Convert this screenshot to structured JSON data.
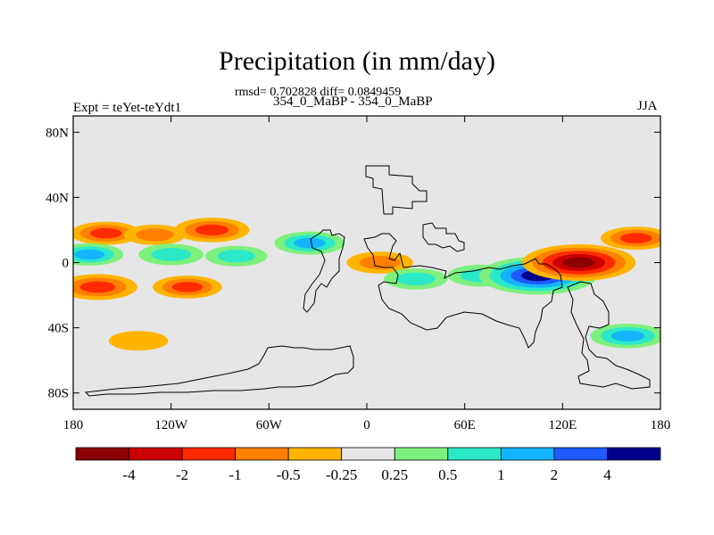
{
  "chart_data": {
    "type": "heatmap",
    "title": "Precipitation (in mm/day)",
    "stats_text": "rmsd= 0.702828 diff= 0.0849459",
    "subtitle": "354_0_MaBP - 354_0_MaBP",
    "left_label": "Expt = teYet-teYdt1",
    "right_label": "JJA",
    "x_range": [
      -180,
      180
    ],
    "y_range": [
      -90,
      90
    ],
    "x_ticks": [
      {
        "value": -180,
        "label": "180"
      },
      {
        "value": -120,
        "label": "120W"
      },
      {
        "value": -60,
        "label": "60W"
      },
      {
        "value": 0,
        "label": "0"
      },
      {
        "value": 60,
        "label": "60E"
      },
      {
        "value": 120,
        "label": "120E"
      },
      {
        "value": 180,
        "label": "180"
      }
    ],
    "y_ticks": [
      {
        "value": 80,
        "label": "80N"
      },
      {
        "value": 40,
        "label": "40N"
      },
      {
        "value": 0,
        "label": "0"
      },
      {
        "value": -40,
        "label": "40S"
      },
      {
        "value": -80,
        "label": "80S"
      }
    ],
    "colorbar": {
      "levels": [
        "-4",
        "-2",
        "-1",
        "-0.5",
        "-0.25",
        "0.25",
        "0.5",
        "1",
        "2",
        "4"
      ],
      "colors": [
        "#8b0000",
        "#cd0000",
        "#ff2a00",
        "#ff7f00",
        "#ffb400",
        "#e6e6e6",
        "#7ef07e",
        "#2ae8c8",
        "#14b4ff",
        "#1e5aff",
        "#00008c"
      ]
    },
    "fields": [
      {
        "lon": -160,
        "lat": 18,
        "value": -1.2
      },
      {
        "lon": -130,
        "lat": 17,
        "value": -0.6
      },
      {
        "lon": -95,
        "lat": 20,
        "value": -1.5
      },
      {
        "lon": -170,
        "lat": 5,
        "value": 1.0
      },
      {
        "lon": -120,
        "lat": 5,
        "value": 0.8
      },
      {
        "lon": -80,
        "lat": 4,
        "value": 0.6
      },
      {
        "lon": -165,
        "lat": -15,
        "value": -1.8
      },
      {
        "lon": -110,
        "lat": -15,
        "value": -1.1
      },
      {
        "lon": -140,
        "lat": -48,
        "value": -0.4
      },
      {
        "lon": -35,
        "lat": 12,
        "value": 1.2
      },
      {
        "lon": 8,
        "lat": 0,
        "value": -0.9
      },
      {
        "lon": 30,
        "lat": -10,
        "value": 0.7
      },
      {
        "lon": 70,
        "lat": -8,
        "value": 0.9
      },
      {
        "lon": 105,
        "lat": -8,
        "value": 4.5
      },
      {
        "lon": 130,
        "lat": 0,
        "value": -4.2
      },
      {
        "lon": 165,
        "lat": 15,
        "value": -1.2
      },
      {
        "lon": 160,
        "lat": -45,
        "value": 1.5
      }
    ]
  }
}
